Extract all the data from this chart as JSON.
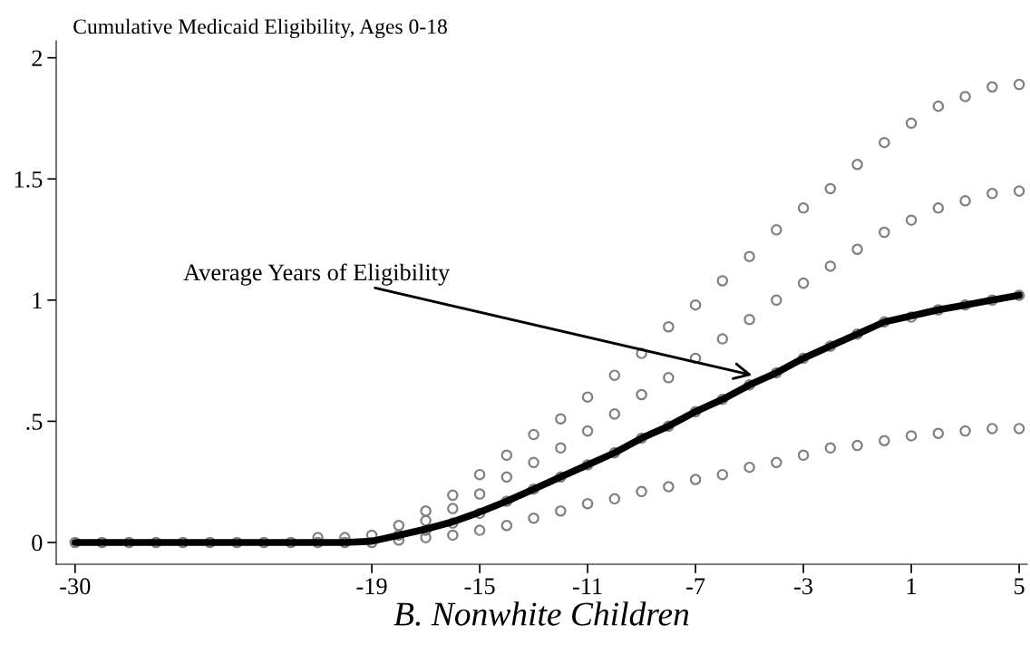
{
  "chart_data": {
    "type": "scatter",
    "ylabel": "Cumulative Medicaid Eligibility, Ages 0-18",
    "xlabel": "B. Nonwhite Children",
    "xlim": [
      -30.7,
      5.3
    ],
    "ylim": [
      -0.09,
      2.07
    ],
    "xticks": [
      -30,
      -19,
      -15,
      -11,
      -7,
      -3,
      1,
      5
    ],
    "yticks": [
      0,
      {
        "value": 0.5,
        "label": ".5"
      },
      1,
      {
        "value": 1.5,
        "label": "1.5"
      },
      2
    ],
    "grid": false,
    "legend": false,
    "marker": "circle",
    "series": [
      {
        "color": "#808080",
        "x": [
          -30,
          -29,
          -28,
          -27,
          -26,
          -25,
          -24,
          -23,
          -22,
          -21,
          -21,
          -20,
          -20,
          -19,
          -19,
          -18,
          -18,
          -18,
          -17,
          -17,
          -17,
          -17,
          -16,
          -16,
          -16,
          -16,
          -15,
          -15,
          -15,
          -15,
          -14,
          -14,
          -14,
          -14,
          -13,
          -13,
          -13,
          -13,
          -12,
          -12,
          -12,
          -12,
          -11,
          -11,
          -11,
          -11,
          -10,
          -10,
          -10,
          -10,
          -9,
          -9,
          -9,
          -9,
          -8,
          -8,
          -8,
          -8,
          -7,
          -7,
          -7,
          -7,
          -6,
          -6,
          -6,
          -6,
          -5,
          -5,
          -5,
          -5,
          -4,
          -4,
          -4,
          -4,
          -3,
          -3,
          -3,
          -3,
          -2,
          -2,
          -2,
          -2,
          -1,
          -1,
          -1,
          -1,
          0,
          0,
          0,
          0,
          1,
          1,
          1,
          1,
          2,
          2,
          2,
          2,
          3,
          3,
          3,
          3,
          4,
          4,
          4,
          4,
          5,
          5,
          5,
          5
        ],
        "values": [
          0,
          0,
          0,
          0,
          0,
          0,
          0,
          0,
          0,
          0,
          0.02,
          0,
          0.02,
          0,
          0.03,
          0.01,
          0.03,
          0.07,
          0.02,
          0.05,
          0.09,
          0.13,
          0.03,
          0.08,
          0.14,
          0.195,
          0.05,
          0.12,
          0.2,
          0.28,
          0.07,
          0.17,
          0.27,
          0.36,
          0.1,
          0.22,
          0.33,
          0.445,
          0.13,
          0.27,
          0.39,
          0.51,
          0.16,
          0.32,
          0.46,
          0.6,
          0.18,
          0.37,
          0.53,
          0.69,
          0.21,
          0.43,
          0.61,
          0.78,
          0.23,
          0.48,
          0.68,
          0.89,
          0.26,
          0.54,
          0.76,
          0.98,
          0.28,
          0.59,
          0.84,
          1.08,
          0.31,
          0.65,
          0.92,
          1.18,
          0.33,
          0.7,
          1.0,
          1.29,
          0.36,
          0.76,
          1.07,
          1.38,
          0.39,
          0.81,
          1.14,
          1.46,
          0.4,
          0.86,
          1.21,
          1.56,
          0.42,
          0.91,
          1.28,
          1.65,
          0.44,
          0.93,
          1.33,
          1.73,
          0.45,
          0.96,
          1.38,
          1.8,
          0.46,
          0.98,
          1.41,
          1.84,
          0.47,
          1.0,
          1.44,
          1.88,
          0.47,
          1.02,
          1.45,
          1.89
        ]
      },
      {
        "type": "line",
        "color": "#000000",
        "marker": "none",
        "x": [
          -30,
          -29,
          -28,
          -27,
          -26,
          -25,
          -24,
          -23,
          -22,
          -21,
          -20,
          -19,
          -18,
          -17,
          -16,
          -15,
          -14,
          -13,
          -12,
          -11,
          -10,
          -9,
          -8,
          -7,
          -6,
          -5,
          -4,
          -3,
          -2,
          -1,
          0,
          1,
          2,
          3,
          4,
          5
        ],
        "values": [
          0,
          0,
          0,
          0,
          0,
          0,
          0,
          0,
          0,
          0,
          0,
          0.005,
          0.03,
          0.055,
          0.085,
          0.125,
          0.17,
          0.22,
          0.27,
          0.32,
          0.37,
          0.43,
          0.48,
          0.54,
          0.59,
          0.65,
          0.7,
          0.76,
          0.81,
          0.86,
          0.91,
          0.935,
          0.96,
          0.98,
          1.0,
          1.02
        ]
      }
    ],
    "annotations": [
      {
        "text": "Average Years of Eligibility",
        "x": -4.9,
        "y": 0.69
      }
    ]
  }
}
